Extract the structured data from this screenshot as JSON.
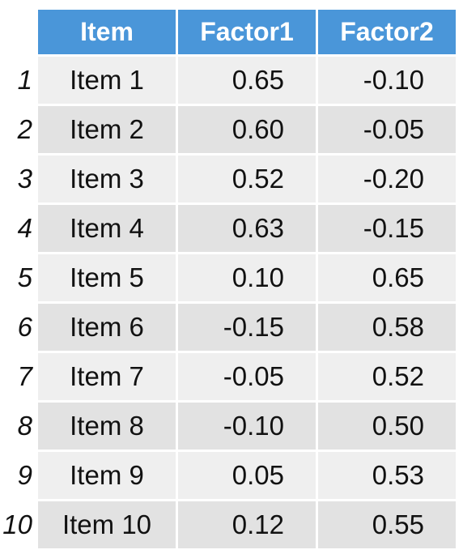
{
  "table": {
    "headers": {
      "index": "",
      "item": "Item",
      "factor1": "Factor1",
      "factor2": "Factor2"
    },
    "rows": [
      {
        "index": "1",
        "item": "Item 1",
        "factor1": "0.65",
        "factor2": "-0.10"
      },
      {
        "index": "2",
        "item": "Item 2",
        "factor1": "0.60",
        "factor2": "-0.05"
      },
      {
        "index": "3",
        "item": "Item 3",
        "factor1": "0.52",
        "factor2": "-0.20"
      },
      {
        "index": "4",
        "item": "Item 4",
        "factor1": "0.63",
        "factor2": "-0.15"
      },
      {
        "index": "5",
        "item": "Item 5",
        "factor1": "0.10",
        "factor2": "0.65"
      },
      {
        "index": "6",
        "item": "Item 6",
        "factor1": "-0.15",
        "factor2": "0.58"
      },
      {
        "index": "7",
        "item": "Item 7",
        "factor1": "-0.05",
        "factor2": "0.52"
      },
      {
        "index": "8",
        "item": "Item 8",
        "factor1": "-0.10",
        "factor2": "0.50"
      },
      {
        "index": "9",
        "item": "Item 9",
        "factor1": "0.05",
        "factor2": "0.53"
      },
      {
        "index": "10",
        "item": "Item 10",
        "factor1": "0.12",
        "factor2": "0.55"
      }
    ]
  },
  "colors": {
    "header_bg": "#4a96d9",
    "header_text": "#ffffff",
    "row_odd_bg": "#efefef",
    "row_even_bg": "#e2e2e2",
    "text": "#111111"
  }
}
